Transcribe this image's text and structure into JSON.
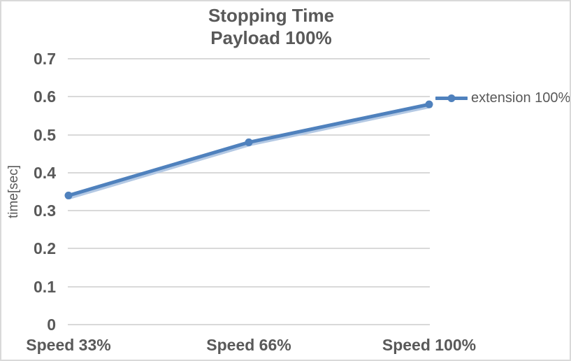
{
  "chart_data": {
    "type": "line",
    "title": "Stopping Time",
    "subtitle": "Payload 100%",
    "xlabel": "",
    "ylabel": "time[sec]",
    "categories": [
      "Speed 33%",
      "Speed 66%",
      "Speed 100%"
    ],
    "series": [
      {
        "name": "extension 100%",
        "values": [
          0.34,
          0.48,
          0.58
        ],
        "color": "#4F81BD"
      }
    ],
    "ylim": [
      0,
      0.7
    ],
    "yticks": [
      {
        "value": 0,
        "label": "0"
      },
      {
        "value": 0.1,
        "label": "0.1"
      },
      {
        "value": 0.2,
        "label": "0.2"
      },
      {
        "value": 0.3,
        "label": "0.3"
      },
      {
        "value": 0.4,
        "label": "0.4"
      },
      {
        "value": 0.5,
        "label": "0.5"
      },
      {
        "value": 0.6,
        "label": "0.6"
      },
      {
        "value": 0.7,
        "label": "0.7"
      }
    ],
    "grid": true,
    "legend_position": "right-of-last-point",
    "marker": "circle",
    "colors": {
      "series": "#4F81BD",
      "series_shadow": "#B4C9E4",
      "gridline": "#D9D9D9",
      "text": "#595959",
      "border": "#D9D9D9",
      "background": "#FFFFFF"
    }
  }
}
